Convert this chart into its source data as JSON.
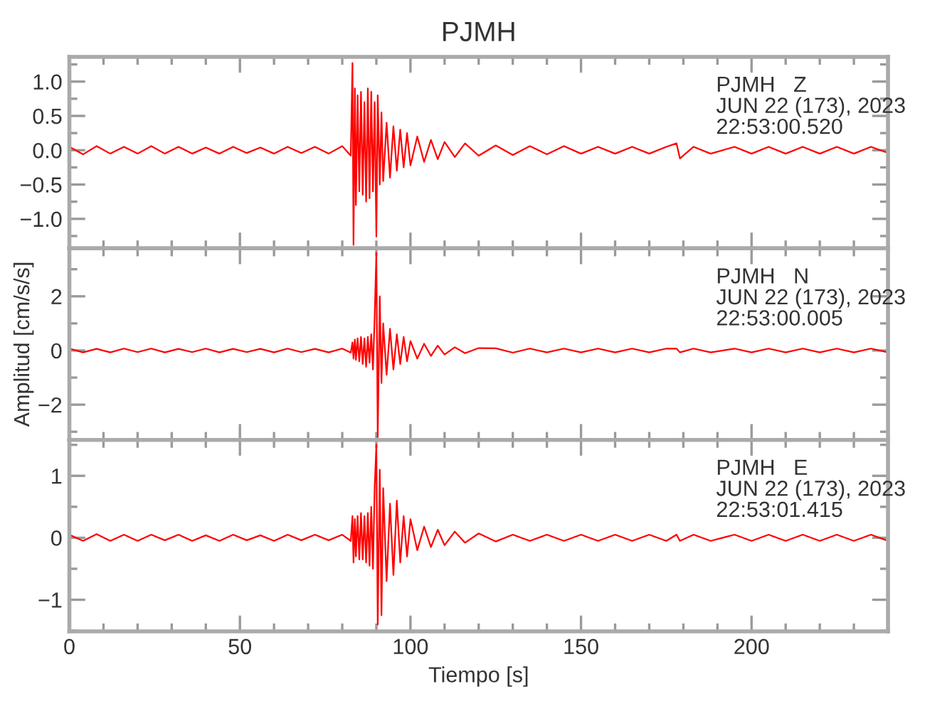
{
  "chart_data": [
    {
      "type": "line",
      "title": "PJMH",
      "annotations": [
        "PJMH   Z\nJUN 22 (173), 2023\n22:53:00.520"
      ],
      "tick_labels": "y",
      "x": [
        0,
        4,
        8,
        12,
        16,
        20,
        24,
        28,
        32,
        36,
        40,
        44,
        48,
        52,
        56,
        60,
        64,
        68,
        72,
        76,
        80,
        82.5,
        83,
        83.3,
        83.7,
        84,
        84.5,
        85,
        85.5,
        86,
        86.5,
        87,
        87.5,
        88,
        88.5,
        89,
        89.5,
        90,
        90.4,
        91,
        91.5,
        92,
        93,
        94,
        95,
        96,
        97,
        98,
        99,
        100,
        102,
        104,
        106,
        108,
        110,
        113,
        116,
        120,
        125,
        130,
        135,
        140,
        145,
        150,
        155,
        160,
        165,
        170,
        175,
        178,
        179,
        183,
        188,
        195,
        200,
        205,
        210,
        215,
        220,
        225,
        230,
        235,
        240
      ],
      "series": [
        {
          "color": "#ff0000",
          "values": [
            0.05,
            -0.06,
            0.06,
            -0.05,
            0.05,
            -0.05,
            0.06,
            -0.05,
            0.05,
            -0.05,
            0.04,
            -0.05,
            0.05,
            -0.04,
            0.04,
            -0.05,
            0.05,
            -0.04,
            0.05,
            -0.05,
            0.06,
            -0.08,
            1.27,
            -1.38,
            0.9,
            -0.8,
            0.8,
            -0.6,
            0.85,
            -0.65,
            0.7,
            -0.75,
            0.9,
            -0.7,
            0.85,
            -0.6,
            0.7,
            -1.26,
            0.8,
            -0.5,
            0.55,
            -0.45,
            0.4,
            -0.4,
            0.35,
            -0.3,
            0.3,
            -0.25,
            0.25,
            -0.22,
            0.2,
            -0.17,
            0.15,
            -0.13,
            0.12,
            -0.1,
            0.1,
            -0.08,
            0.07,
            -0.07,
            0.06,
            -0.06,
            0.06,
            -0.05,
            0.05,
            -0.05,
            0.05,
            -0.05,
            0.05,
            0.1,
            -0.12,
            0.05,
            -0.05,
            0.05,
            -0.05,
            0.05,
            -0.05,
            0.05,
            -0.05,
            0.05,
            -0.05,
            0.05,
            -0.04
          ]
        }
      ],
      "xlim": [
        0,
        240
      ],
      "xticks": [
        0,
        {
          "value": 10,
          "label": null
        },
        {
          "value": 20,
          "label": null
        },
        {
          "value": 30,
          "label": null
        },
        {
          "value": 40,
          "label": null
        },
        50,
        {
          "value": 60,
          "label": null
        },
        {
          "value": 70,
          "label": null
        },
        {
          "value": 80,
          "label": null
        },
        {
          "value": 90,
          "label": null
        },
        100,
        {
          "value": 110,
          "label": null
        },
        {
          "value": 120,
          "label": null
        },
        {
          "value": 130,
          "label": null
        },
        {
          "value": 140,
          "label": null
        },
        150,
        {
          "value": 160,
          "label": null
        },
        {
          "value": 170,
          "label": null
        },
        {
          "value": 180,
          "label": null
        },
        {
          "value": 190,
          "label": null
        },
        200,
        {
          "value": 210,
          "label": null
        },
        {
          "value": 220,
          "label": null
        },
        {
          "value": 230,
          "label": null
        }
      ],
      "ylim": [
        -1.43,
        1.36
      ],
      "yticks": [
        {
          "value": -1.25,
          "label": null
        },
        {
          "value": -1.0,
          "label": "−1.0"
        },
        {
          "value": -0.75,
          "label": null
        },
        {
          "value": -0.5,
          "label": "−0.5"
        },
        {
          "value": -0.25,
          "label": null
        },
        {
          "value": 0.0,
          "label": "0.0"
        },
        {
          "value": 0.25,
          "label": null
        },
        {
          "value": 0.5,
          "label": "0.5"
        },
        {
          "value": 0.75,
          "label": null
        },
        {
          "value": 1.0,
          "label": "1.0"
        },
        {
          "value": 1.25,
          "label": null
        }
      ]
    },
    {
      "type": "line",
      "ylabel": "Amplitud [cm/s/s]",
      "annotations": [
        "PJMH   N\nJUN 22 (173), 2023\n22:53:00.005"
      ],
      "tick_labels": "y",
      "x": [
        0,
        4,
        8,
        12,
        16,
        20,
        24,
        28,
        32,
        36,
        40,
        44,
        48,
        52,
        56,
        60,
        64,
        68,
        72,
        76,
        80,
        82.5,
        83,
        83.3,
        83.7,
        84,
        84.5,
        85,
        85.5,
        86,
        86.5,
        87,
        87.5,
        88,
        88.5,
        89,
        89.5,
        90,
        90.4,
        91,
        91.5,
        92,
        93,
        94,
        95,
        96,
        97,
        98,
        99,
        100,
        102,
        104,
        106,
        108,
        110,
        113,
        116,
        120,
        125,
        130,
        135,
        140,
        145,
        150,
        155,
        160,
        165,
        170,
        175,
        178,
        179,
        183,
        188,
        195,
        200,
        205,
        210,
        215,
        220,
        225,
        230,
        235,
        240
      ],
      "series": [
        {
          "color": "#ff0000",
          "values": [
            0.07,
            -0.07,
            0.06,
            -0.07,
            0.07,
            -0.06,
            0.07,
            -0.07,
            0.06,
            -0.06,
            0.07,
            -0.07,
            0.06,
            -0.06,
            0.06,
            -0.07,
            0.07,
            -0.06,
            0.06,
            -0.07,
            0.07,
            -0.08,
            0.3,
            -0.3,
            0.4,
            -0.35,
            0.45,
            -0.4,
            0.5,
            -0.5,
            0.45,
            -0.6,
            0.5,
            -0.45,
            0.6,
            -0.7,
            1.2,
            3.6,
            -3.2,
            2.0,
            -1.2,
            1.0,
            -0.9,
            0.8,
            -0.7,
            0.6,
            -0.5,
            0.5,
            -0.4,
            0.35,
            -0.3,
            0.25,
            -0.2,
            0.18,
            -0.15,
            0.12,
            -0.1,
            0.09,
            0.08,
            -0.08,
            0.07,
            -0.07,
            0.07,
            -0.07,
            0.07,
            -0.07,
            0.07,
            -0.07,
            0.07,
            0.07,
            -0.07,
            0.07,
            -0.07,
            0.07,
            -0.07,
            0.07,
            -0.07,
            0.07,
            -0.07,
            0.07,
            -0.07,
            0.07,
            -0.07
          ]
        }
      ],
      "xlim": [
        0,
        240
      ],
      "xticks": [
        0,
        {
          "value": 10,
          "label": null
        },
        {
          "value": 20,
          "label": null
        },
        {
          "value": 30,
          "label": null
        },
        {
          "value": 40,
          "label": null
        },
        50,
        {
          "value": 60,
          "label": null
        },
        {
          "value": 70,
          "label": null
        },
        {
          "value": 80,
          "label": null
        },
        {
          "value": 90,
          "label": null
        },
        100,
        {
          "value": 110,
          "label": null
        },
        {
          "value": 120,
          "label": null
        },
        {
          "value": 130,
          "label": null
        },
        {
          "value": 140,
          "label": null
        },
        150,
        {
          "value": 160,
          "label": null
        },
        {
          "value": 170,
          "label": null
        },
        {
          "value": 180,
          "label": null
        },
        {
          "value": 190,
          "label": null
        },
        200,
        {
          "value": 210,
          "label": null
        },
        {
          "value": 220,
          "label": null
        },
        {
          "value": 230,
          "label": null
        }
      ],
      "ylim": [
        -3.3,
        3.77
      ],
      "yticks": [
        {
          "value": -3,
          "label": null
        },
        {
          "value": -2,
          "label": "−2"
        },
        {
          "value": -1,
          "label": null
        },
        0,
        {
          "value": 1,
          "label": null
        },
        2,
        {
          "value": 3,
          "label": null
        }
      ]
    },
    {
      "type": "line",
      "xlabel": "Tiempo [s]",
      "annotations": [
        "PJMH   E\nJUN 22 (173), 2023\n22:53:01.415"
      ],
      "x": [
        0,
        4,
        8,
        12,
        16,
        20,
        24,
        28,
        32,
        36,
        40,
        44,
        48,
        52,
        56,
        60,
        64,
        68,
        72,
        76,
        80,
        82.5,
        83,
        83.3,
        83.7,
        84,
        84.5,
        85,
        85.5,
        86,
        86.5,
        87,
        87.5,
        88,
        88.5,
        89,
        89.5,
        90,
        90.4,
        91,
        91.5,
        92,
        93,
        94,
        95,
        96,
        97,
        98,
        99,
        100,
        102,
        104,
        106,
        108,
        110,
        113,
        116,
        120,
        125,
        130,
        135,
        140,
        145,
        150,
        155,
        160,
        165,
        170,
        175,
        178,
        179,
        183,
        188,
        195,
        200,
        205,
        210,
        215,
        220,
        225,
        230,
        235,
        240
      ],
      "series": [
        {
          "color": "#ff0000",
          "values": [
            0.05,
            -0.05,
            0.06,
            -0.05,
            0.05,
            -0.05,
            0.05,
            -0.04,
            0.05,
            -0.05,
            0.04,
            -0.05,
            0.05,
            -0.04,
            0.04,
            -0.05,
            0.05,
            -0.04,
            0.05,
            -0.04,
            0.05,
            -0.05,
            0.35,
            -0.4,
            0.3,
            -0.3,
            0.35,
            -0.35,
            0.4,
            -0.35,
            0.35,
            -0.4,
            0.4,
            -0.45,
            0.5,
            -0.5,
            0.8,
            1.5,
            -1.4,
            1.1,
            -1.25,
            0.8,
            -0.7,
            0.55,
            -0.6,
            0.6,
            -0.4,
            0.35,
            -0.3,
            0.3,
            -0.2,
            0.18,
            -0.15,
            0.13,
            -0.12,
            0.1,
            -0.08,
            0.07,
            -0.06,
            0.05,
            -0.05,
            0.05,
            -0.05,
            0.05,
            -0.05,
            0.05,
            -0.05,
            0.05,
            -0.05,
            0.05,
            -0.05,
            0.05,
            -0.05,
            0.05,
            -0.05,
            0.05,
            -0.05,
            0.05,
            -0.05,
            0.05,
            -0.05,
            0.05,
            -0.05
          ]
        }
      ],
      "xlim": [
        0,
        240
      ],
      "xticks": [
        0,
        {
          "value": 10,
          "label": null
        },
        {
          "value": 20,
          "label": null
        },
        {
          "value": 30,
          "label": null
        },
        {
          "value": 40,
          "label": null
        },
        50,
        {
          "value": 60,
          "label": null
        },
        {
          "value": 70,
          "label": null
        },
        {
          "value": 80,
          "label": null
        },
        {
          "value": 90,
          "label": null
        },
        100,
        {
          "value": 110,
          "label": null
        },
        {
          "value": 120,
          "label": null
        },
        {
          "value": 130,
          "label": null
        },
        {
          "value": 140,
          "label": null
        },
        150,
        {
          "value": 160,
          "label": null
        },
        {
          "value": 170,
          "label": null
        },
        {
          "value": 180,
          "label": null
        },
        {
          "value": 190,
          "label": null
        },
        200,
        {
          "value": 210,
          "label": null
        },
        {
          "value": 220,
          "label": null
        },
        {
          "value": 230,
          "label": null
        }
      ],
      "ylim": [
        -1.51,
        1.58
      ],
      "yticks": [
        {
          "value": -1.5,
          "label": null
        },
        {
          "value": -1,
          "label": "−1"
        },
        {
          "value": -0.5,
          "label": null
        },
        0,
        {
          "value": 0.5,
          "label": null
        },
        1,
        {
          "value": 1.5,
          "label": null
        }
      ]
    }
  ]
}
